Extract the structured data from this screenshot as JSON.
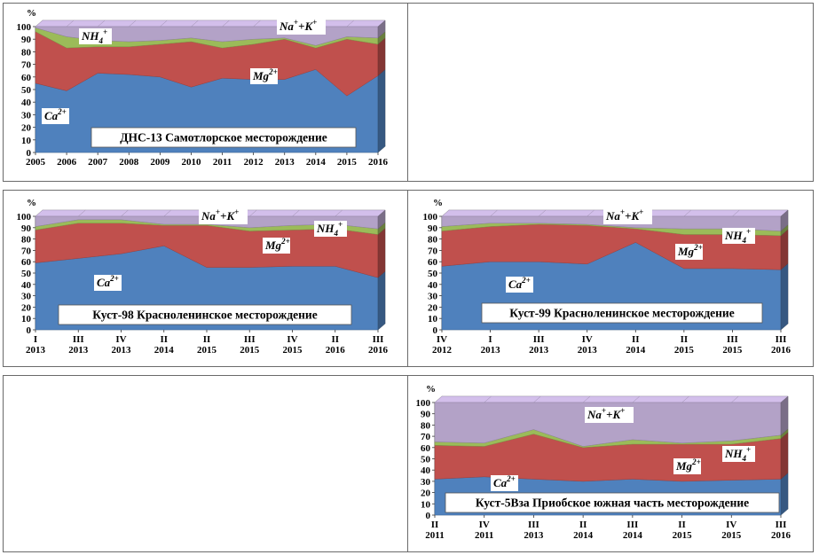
{
  "chart_data": [
    {
      "type": "area",
      "stacked": true,
      "title": "ДНС-13 Самотлорское месторождение",
      "ylabel": "%",
      "ylim": [
        0,
        100
      ],
      "yticks": [
        0,
        10,
        20,
        30,
        40,
        50,
        60,
        70,
        80,
        90,
        100
      ],
      "categories": [
        [
          "2005"
        ],
        [
          "2006"
        ],
        [
          "2007"
        ],
        [
          "2008"
        ],
        [
          "2009"
        ],
        [
          "2010"
        ],
        [
          "2011"
        ],
        [
          "2012"
        ],
        [
          "2013"
        ],
        [
          "2014"
        ],
        [
          "2015"
        ],
        [
          "2016"
        ]
      ],
      "series": [
        {
          "name": "Ca2+",
          "label_base": "Ca",
          "label_sup": "2+",
          "color": "#4f81bd",
          "values": [
            55,
            49,
            63,
            62,
            60,
            52,
            59,
            58,
            58,
            66,
            45,
            61
          ]
        },
        {
          "name": "Mg2+",
          "label_base": "Mg",
          "label_sup": "2+",
          "color": "#c0504d",
          "values": [
            41,
            34,
            21,
            22,
            26,
            36,
            24,
            28,
            32,
            17,
            45,
            25
          ]
        },
        {
          "name": "NH4+",
          "label_base": "NH",
          "label_sub": "4",
          "label_sup": "+",
          "color": "#9bbb59",
          "values": [
            3,
            9,
            5,
            4,
            3,
            3,
            5,
            4,
            1,
            2,
            2,
            5
          ]
        },
        {
          "name": "Na++K+",
          "label_base": "Na",
          "label_sup": "+",
          "label_base2": "+K",
          "label_sup2": "+",
          "color": "#b3a2c7",
          "values": [
            1,
            8,
            11,
            12,
            11,
            9,
            12,
            10,
            9,
            15,
            8,
            9
          ]
        }
      ]
    },
    {
      "type": "area",
      "stacked": true,
      "title": "Куст-98 Красноленинское месторождение",
      "ylabel": "%",
      "ylim": [
        0,
        100
      ],
      "yticks": [
        0,
        10,
        20,
        30,
        40,
        50,
        60,
        70,
        80,
        90,
        100
      ],
      "categories": [
        [
          "I",
          "2013"
        ],
        [
          "III",
          "2013"
        ],
        [
          "IV",
          "2013"
        ],
        [
          "II",
          "2014"
        ],
        [
          "II",
          "2015"
        ],
        [
          "III",
          "2015"
        ],
        [
          "IV",
          "2015"
        ],
        [
          "II",
          "2016"
        ],
        [
          "III",
          "2016"
        ]
      ],
      "series": [
        {
          "name": "Ca2+",
          "label_base": "Ca",
          "label_sup": "2+",
          "color": "#4f81bd",
          "values": [
            59,
            63,
            67,
            74,
            55,
            55,
            56,
            56,
            46
          ]
        },
        {
          "name": "Mg2+",
          "label_base": "Mg",
          "label_sup": "2+",
          "color": "#c0504d",
          "values": [
            29,
            31,
            27,
            18,
            37,
            32,
            32,
            33,
            38
          ]
        },
        {
          "name": "NH4+",
          "label_base": "NH",
          "label_sub": "4",
          "label_sup": "+",
          "color": "#9bbb59",
          "values": [
            3,
            3,
            3,
            1,
            1,
            3,
            4,
            4,
            5
          ]
        },
        {
          "name": "Na++K+",
          "label_base": "Na",
          "label_sup": "+",
          "label_base2": "+K",
          "label_sup2": "+",
          "color": "#b3a2c7",
          "values": [
            9,
            3,
            3,
            7,
            7,
            10,
            8,
            7,
            11
          ]
        }
      ]
    },
    {
      "type": "area",
      "stacked": true,
      "title": "Куст-99 Красноленинское месторождение",
      "ylabel": "%",
      "ylim": [
        0,
        100
      ],
      "yticks": [
        0,
        10,
        20,
        30,
        40,
        50,
        60,
        70,
        80,
        90,
        100
      ],
      "categories": [
        [
          "IV",
          "2012"
        ],
        [
          "I",
          "2013"
        ],
        [
          "III",
          "2013"
        ],
        [
          "IV",
          "2013"
        ],
        [
          "II",
          "2014"
        ],
        [
          "II",
          "2015"
        ],
        [
          "III",
          "2015"
        ],
        [
          "III",
          "2016"
        ]
      ],
      "series": [
        {
          "name": "Ca2+",
          "label_base": "Ca",
          "label_sup": "2+",
          "color": "#4f81bd",
          "values": [
            56,
            60,
            60,
            58,
            77,
            54,
            54,
            53
          ]
        },
        {
          "name": "Mg2+",
          "label_base": "Mg",
          "label_sup": "2+",
          "color": "#c0504d",
          "values": [
            31,
            31,
            33,
            34,
            12,
            30,
            30,
            30
          ]
        },
        {
          "name": "NH4+",
          "label_base": "NH",
          "label_sub": "4",
          "label_sup": "+",
          "color": "#9bbb59",
          "values": [
            4,
            3,
            1,
            1,
            1,
            5,
            5,
            4
          ]
        },
        {
          "name": "Na++K+",
          "label_base": "Na",
          "label_sup": "+",
          "label_base2": "+K",
          "label_sup2": "+",
          "color": "#b3a2c7",
          "values": [
            9,
            6,
            6,
            7,
            10,
            11,
            11,
            13
          ]
        }
      ]
    },
    {
      "type": "area",
      "stacked": true,
      "title": "Куст-5Вза Приобское южная часть месторождение",
      "ylabel": "%",
      "ylim": [
        0,
        100
      ],
      "yticks": [
        0,
        10,
        20,
        30,
        40,
        50,
        60,
        70,
        80,
        90,
        100
      ],
      "categories": [
        [
          "II",
          "2011"
        ],
        [
          "IV",
          "2011"
        ],
        [
          "III",
          "2013"
        ],
        [
          "II",
          "2014"
        ],
        [
          "III",
          "2014"
        ],
        [
          "II",
          "2015"
        ],
        [
          "IV",
          "2015"
        ],
        [
          "III",
          "2016"
        ]
      ],
      "series": [
        {
          "name": "Ca2+",
          "label_base": "Ca",
          "label_sup": "2+",
          "color": "#4f81bd",
          "values": [
            32,
            34,
            32,
            30,
            32,
            30,
            31,
            32
          ]
        },
        {
          "name": "Mg2+",
          "label_base": "Mg",
          "label_sup": "2+",
          "color": "#c0504d",
          "values": [
            30,
            27,
            40,
            30,
            31,
            33,
            32,
            36
          ]
        },
        {
          "name": "NH4+",
          "label_base": "NH",
          "label_sub": "4",
          "label_sup": "+",
          "color": "#9bbb59",
          "values": [
            3,
            3,
            4,
            1,
            4,
            1,
            3,
            3
          ]
        },
        {
          "name": "Na++K+",
          "label_base": "Na",
          "label_sup": "+",
          "label_base2": "+K",
          "label_sup2": "+",
          "color": "#b3a2c7",
          "values": [
            35,
            36,
            24,
            39,
            33,
            36,
            34,
            29
          ]
        }
      ]
    }
  ]
}
